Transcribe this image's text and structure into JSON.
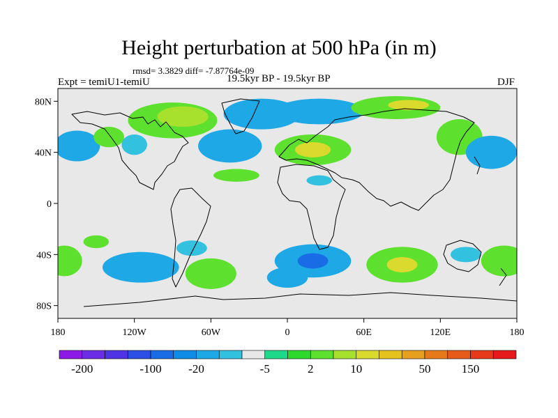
{
  "chart_data": {
    "type": "heatmap",
    "title": "Height perturbation at 500 hPa (in m)",
    "stats_line": "rmsd= 3.3829 diff= -7.87764e-09",
    "left_label": "Expt = temiU1-temiU",
    "center_label": "19.5kyr BP - 19.5kyr BP",
    "right_label": "DJF",
    "xlim": [
      -180,
      180
    ],
    "ylim": [
      -90,
      90
    ],
    "x_ticks": [
      {
        "value": -180,
        "label": "180"
      },
      {
        "value": -120,
        "label": "120W"
      },
      {
        "value": -60,
        "label": "60W"
      },
      {
        "value": 0,
        "label": "0"
      },
      {
        "value": 60,
        "label": "60E"
      },
      {
        "value": 120,
        "label": "120E"
      },
      {
        "value": 180,
        "label": "180"
      }
    ],
    "y_ticks": [
      {
        "value": 80,
        "label": "80N"
      },
      {
        "value": 40,
        "label": "40N"
      },
      {
        "value": 0,
        "label": "0"
      },
      {
        "value": -40,
        "label": "40S"
      },
      {
        "value": -80,
        "label": "80S"
      }
    ],
    "colorbar": {
      "colors": [
        "#8c19e6",
        "#6b2ee6",
        "#4f34e6",
        "#2e4fe6",
        "#1a6be6",
        "#0f8ce6",
        "#1ea8e6",
        "#33c1e0",
        "#e8e8e8",
        "#1fd98a",
        "#2ed92e",
        "#5ee02e",
        "#a8e02e",
        "#d9d92e",
        "#e6c21f",
        "#e69f1f",
        "#e67a1a",
        "#e65a1a",
        "#e63a1a",
        "#e61a1a"
      ],
      "labels": [
        {
          "edge": 1,
          "text": "-200"
        },
        {
          "edge": 4,
          "text": "-100"
        },
        {
          "edge": 6,
          "text": "-20"
        },
        {
          "edge": 9,
          "text": "-5"
        },
        {
          "edge": 11,
          "text": "2"
        },
        {
          "edge": 13,
          "text": "10"
        },
        {
          "edge": 16,
          "text": "50"
        },
        {
          "edge": 18,
          "text": "150"
        }
      ]
    },
    "anomalies": [
      {
        "lon": -165,
        "lat": 45,
        "level": -3,
        "rx": 18,
        "ry": 12
      },
      {
        "lon": -140,
        "lat": 52,
        "level": 1,
        "rx": 12,
        "ry": 8
      },
      {
        "lon": -120,
        "lat": 46,
        "level": -2,
        "rx": 10,
        "ry": 8
      },
      {
        "lon": -90,
        "lat": 65,
        "level": 1,
        "rx": 35,
        "ry": 14
      },
      {
        "lon": -82,
        "lat": 68,
        "level": 2,
        "rx": 20,
        "ry": 8
      },
      {
        "lon": -45,
        "lat": 45,
        "level": -3,
        "rx": 25,
        "ry": 13
      },
      {
        "lon": -20,
        "lat": 70,
        "level": -3,
        "rx": 30,
        "ry": 12
      },
      {
        "lon": 25,
        "lat": 72,
        "level": -3,
        "rx": 35,
        "ry": 10
      },
      {
        "lon": 20,
        "lat": 42,
        "level": 1,
        "rx": 30,
        "ry": 12
      },
      {
        "lon": 20,
        "lat": 42,
        "level": 3,
        "rx": 14,
        "ry": 6
      },
      {
        "lon": 85,
        "lat": 75,
        "level": 1,
        "rx": 35,
        "ry": 9
      },
      {
        "lon": 95,
        "lat": 77,
        "level": 3,
        "rx": 16,
        "ry": 4
      },
      {
        "lon": 135,
        "lat": 52,
        "level": 1,
        "rx": 18,
        "ry": 14
      },
      {
        "lon": 160,
        "lat": 40,
        "level": -3,
        "rx": 20,
        "ry": 13
      },
      {
        "lon": -40,
        "lat": 22,
        "level": 1,
        "rx": 18,
        "ry": 5
      },
      {
        "lon": 25,
        "lat": 18,
        "level": -2,
        "rx": 10,
        "ry": 4
      },
      {
        "lon": -150,
        "lat": -30,
        "level": 1,
        "rx": 10,
        "ry": 5
      },
      {
        "lon": -115,
        "lat": -50,
        "level": -3,
        "rx": 30,
        "ry": 12
      },
      {
        "lon": -75,
        "lat": -35,
        "level": -2,
        "rx": 12,
        "ry": 6
      },
      {
        "lon": -60,
        "lat": -55,
        "level": 1,
        "rx": 20,
        "ry": 12
      },
      {
        "lon": 0,
        "lat": -58,
        "level": -3,
        "rx": 16,
        "ry": 8
      },
      {
        "lon": 20,
        "lat": -45,
        "level": -3,
        "rx": 30,
        "ry": 13
      },
      {
        "lon": 20,
        "lat": -45,
        "level": -5,
        "rx": 12,
        "ry": 6
      },
      {
        "lon": 90,
        "lat": -48,
        "level": 1,
        "rx": 28,
        "ry": 14
      },
      {
        "lon": 90,
        "lat": -48,
        "level": 3,
        "rx": 12,
        "ry": 6
      },
      {
        "lon": 140,
        "lat": -40,
        "level": -2,
        "rx": 12,
        "ry": 6
      },
      {
        "lon": 170,
        "lat": -45,
        "level": 1,
        "rx": 18,
        "ry": 12
      },
      {
        "lon": -175,
        "lat": -45,
        "level": 1,
        "rx": 14,
        "ry": 12
      }
    ]
  }
}
